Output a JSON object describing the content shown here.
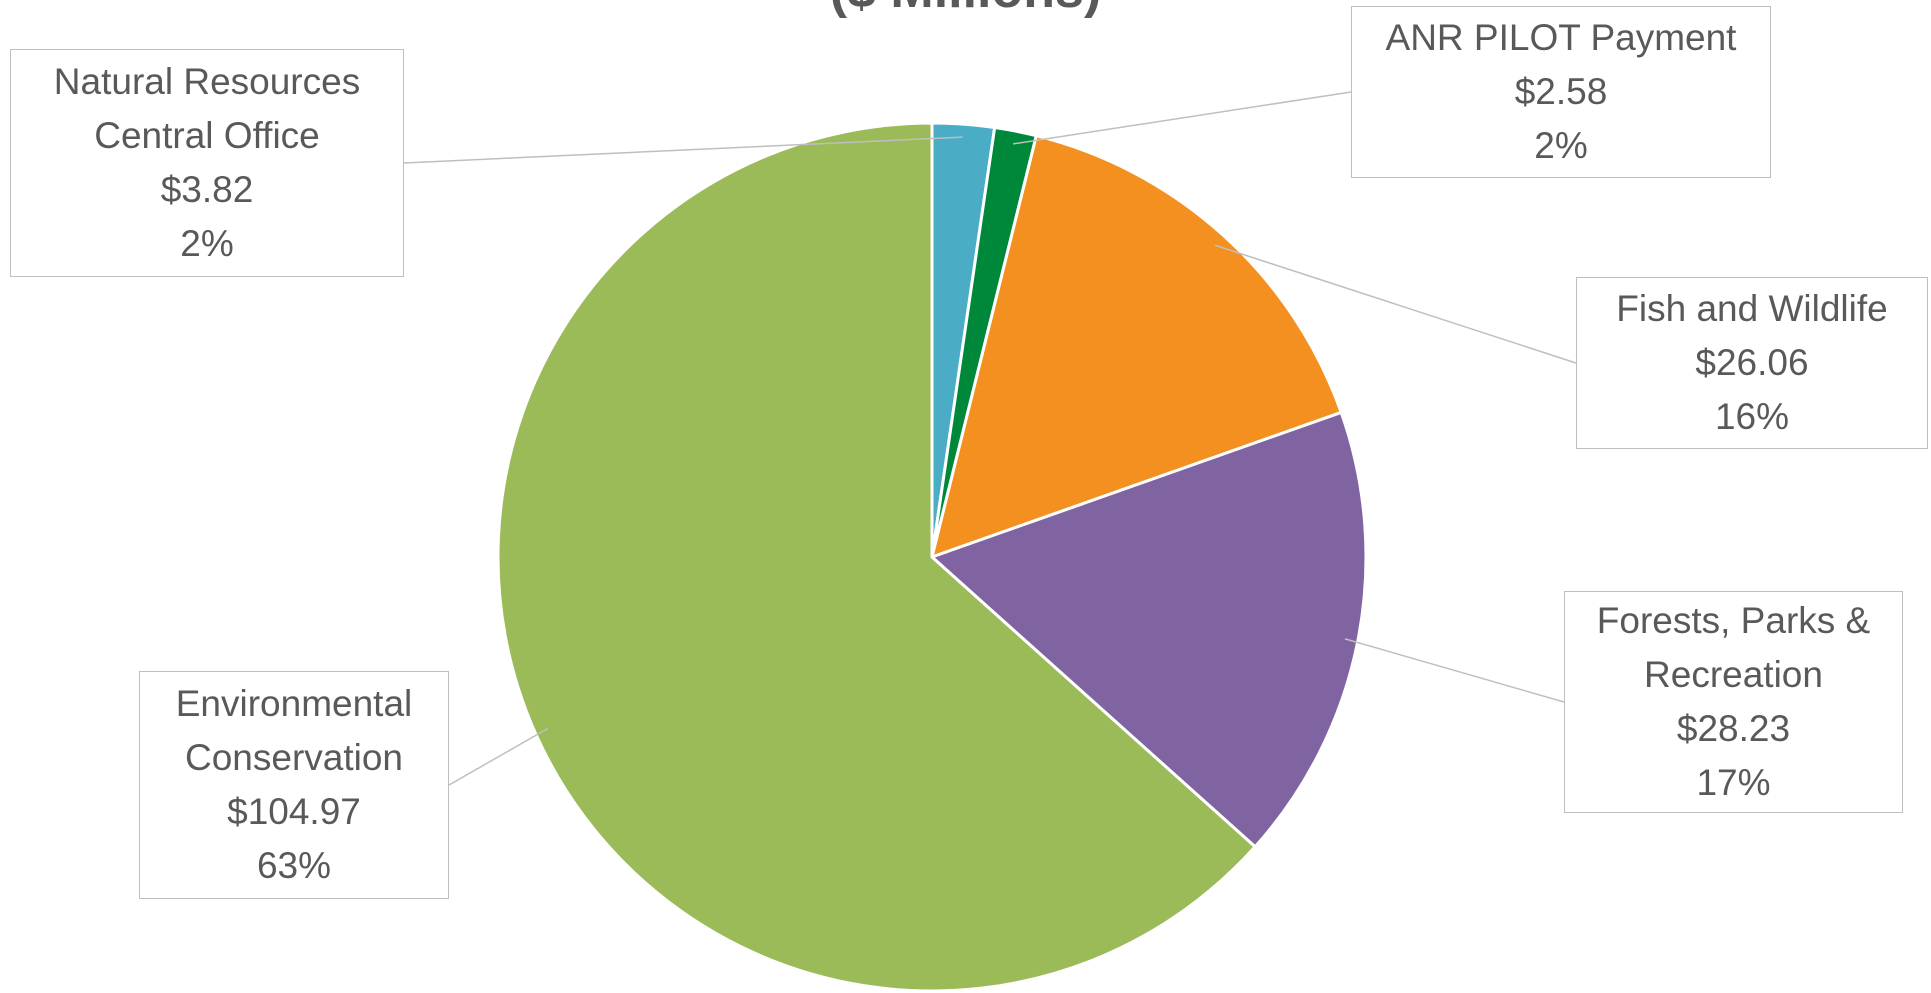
{
  "chart_data": {
    "type": "pie",
    "title": "($ Millions)",
    "categories": [
      "Natural Resources Central Office",
      "ANR PILOT Payment",
      "Fish and Wildlife",
      "Forests, Parks & Recreation",
      "Environmental Conservation"
    ],
    "values": [
      3.82,
      2.58,
      26.06,
      28.23,
      104.97
    ],
    "value_labels": [
      "$3.82",
      "$2.58",
      "$26.06",
      "$28.23",
      "$104.97"
    ],
    "percent_labels": [
      "2%",
      "2%",
      "16%",
      "17%",
      "63%"
    ],
    "colors": [
      "#4bacc6",
      "#00883a",
      "#f39020",
      "#8064a2",
      "#9bbb59"
    ]
  }
}
